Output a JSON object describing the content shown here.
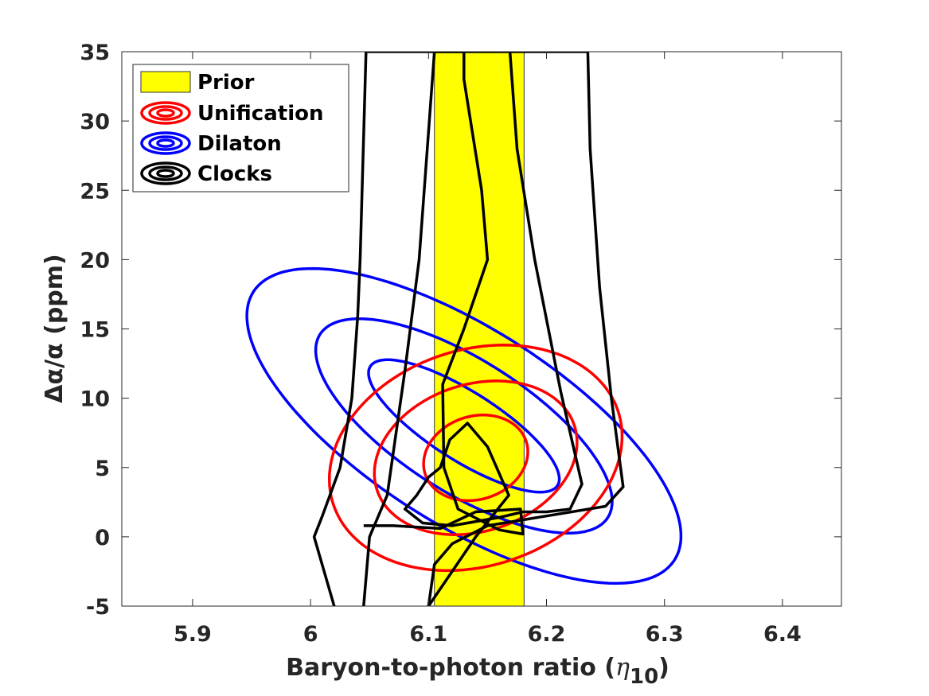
{
  "chart_data": {
    "type": "contour",
    "xlabel": "Baryon-to-photon ratio (",
    "xlabel_symbol": "η",
    "xlabel_subscript": "10",
    "xlabel_close": ")",
    "ylabel": "Δα/α (ppm)",
    "xlim": [
      5.84,
      6.45
    ],
    "ylim": [
      -5,
      35
    ],
    "xticks": [
      5.9,
      6.0,
      6.1,
      6.2,
      6.3,
      6.4
    ],
    "xtick_labels": [
      "5.9",
      "6",
      "6.1",
      "6.2",
      "6.3",
      "6.4"
    ],
    "yticks": [
      -5,
      0,
      5,
      10,
      15,
      20,
      25,
      30,
      35
    ],
    "ytick_labels": [
      "-5",
      "0",
      "5",
      "10",
      "15",
      "20",
      "25",
      "30",
      "35"
    ],
    "legend_position": "top-left",
    "prior": {
      "name": "Prior",
      "color": "#ffff00",
      "x_range": [
        6.105,
        6.181
      ]
    },
    "series": [
      {
        "name": "Unification",
        "color": "#ff0000",
        "center": [
          6.14,
          5.7
        ],
        "angle_deg": 18,
        "axes": [
          [
            0.045,
            3.0
          ],
          [
            0.088,
            5.3
          ],
          [
            0.127,
            7.8
          ]
        ]
      },
      {
        "name": "Dilaton",
        "color": "#0000ff",
        "center": [
          6.13,
          8.0
        ],
        "angle_deg": 57.5,
        "axes": [
          [
            0.029,
            8.0
          ],
          [
            0.056,
            12.3
          ],
          [
            0.083,
            18.0
          ]
        ]
      },
      {
        "name": "Clocks",
        "color": "#000000",
        "contours": [
          [
            [
              6.1,
              -5
            ],
            [
              6.14,
              0
            ],
            [
              6.168,
              3.0
            ],
            [
              6.15,
              6.5
            ],
            [
              6.133,
              8.2
            ],
            [
              6.118,
              7.0
            ],
            [
              6.11,
              5.0
            ],
            [
              6.1,
              4.3
            ],
            [
              6.09,
              3.0
            ],
            [
              6.08,
              2.0
            ],
            [
              6.095,
              1.0
            ],
            [
              6.12,
              0.8
            ],
            [
              6.16,
              1.4
            ],
            [
              6.18,
              1.8
            ],
            [
              6.2,
              1.8
            ],
            [
              6.22,
              2.0
            ],
            [
              6.23,
              3.8
            ],
            [
              6.212,
              10.5
            ],
            [
              6.19,
              20
            ],
            [
              6.175,
              28
            ],
            [
              6.169,
              35
            ]
          ],
          [
            [
              6.045,
              -5
            ],
            [
              6.05,
              0
            ],
            [
              6.065,
              3.0
            ],
            [
              6.08,
              12.0
            ],
            [
              6.092,
              20.0
            ],
            [
              6.105,
              35
            ],
            [
              6.13,
              35
            ],
            [
              6.13,
              33.0
            ],
            [
              6.145,
              25.0
            ],
            [
              6.15,
              20.0
            ],
            [
              6.13,
              15.0
            ],
            [
              6.112,
              11.0
            ],
            [
              6.113,
              5.0
            ],
            [
              6.125,
              2.0
            ],
            [
              6.16,
              0.5
            ],
            [
              6.18,
              0.2
            ],
            [
              6.178,
              2.0
            ],
            [
              6.14,
              1.8
            ],
            [
              6.11,
              0.6
            ],
            [
              6.07,
              0.8
            ],
            [
              6.045,
              0.8
            ]
          ],
          [
            [
              6.02,
              -5
            ],
            [
              6.003,
              0.0
            ],
            [
              6.01,
              1.5
            ],
            [
              6.025,
              5.0
            ],
            [
              6.035,
              10.0
            ],
            [
              6.04,
              16.0
            ],
            [
              6.042,
              20.0
            ],
            [
              6.047,
              35
            ],
            [
              6.235,
              35
            ],
            [
              6.237,
              28
            ],
            [
              6.245,
              18
            ],
            [
              6.255,
              10
            ],
            [
              6.265,
              3.6
            ],
            [
              6.25,
              2.2
            ],
            [
              6.2,
              1.5
            ],
            [
              6.15,
              0.8
            ],
            [
              6.12,
              -0.5
            ],
            [
              6.105,
              -2.0
            ],
            [
              6.1,
              -5
            ]
          ]
        ]
      }
    ]
  }
}
